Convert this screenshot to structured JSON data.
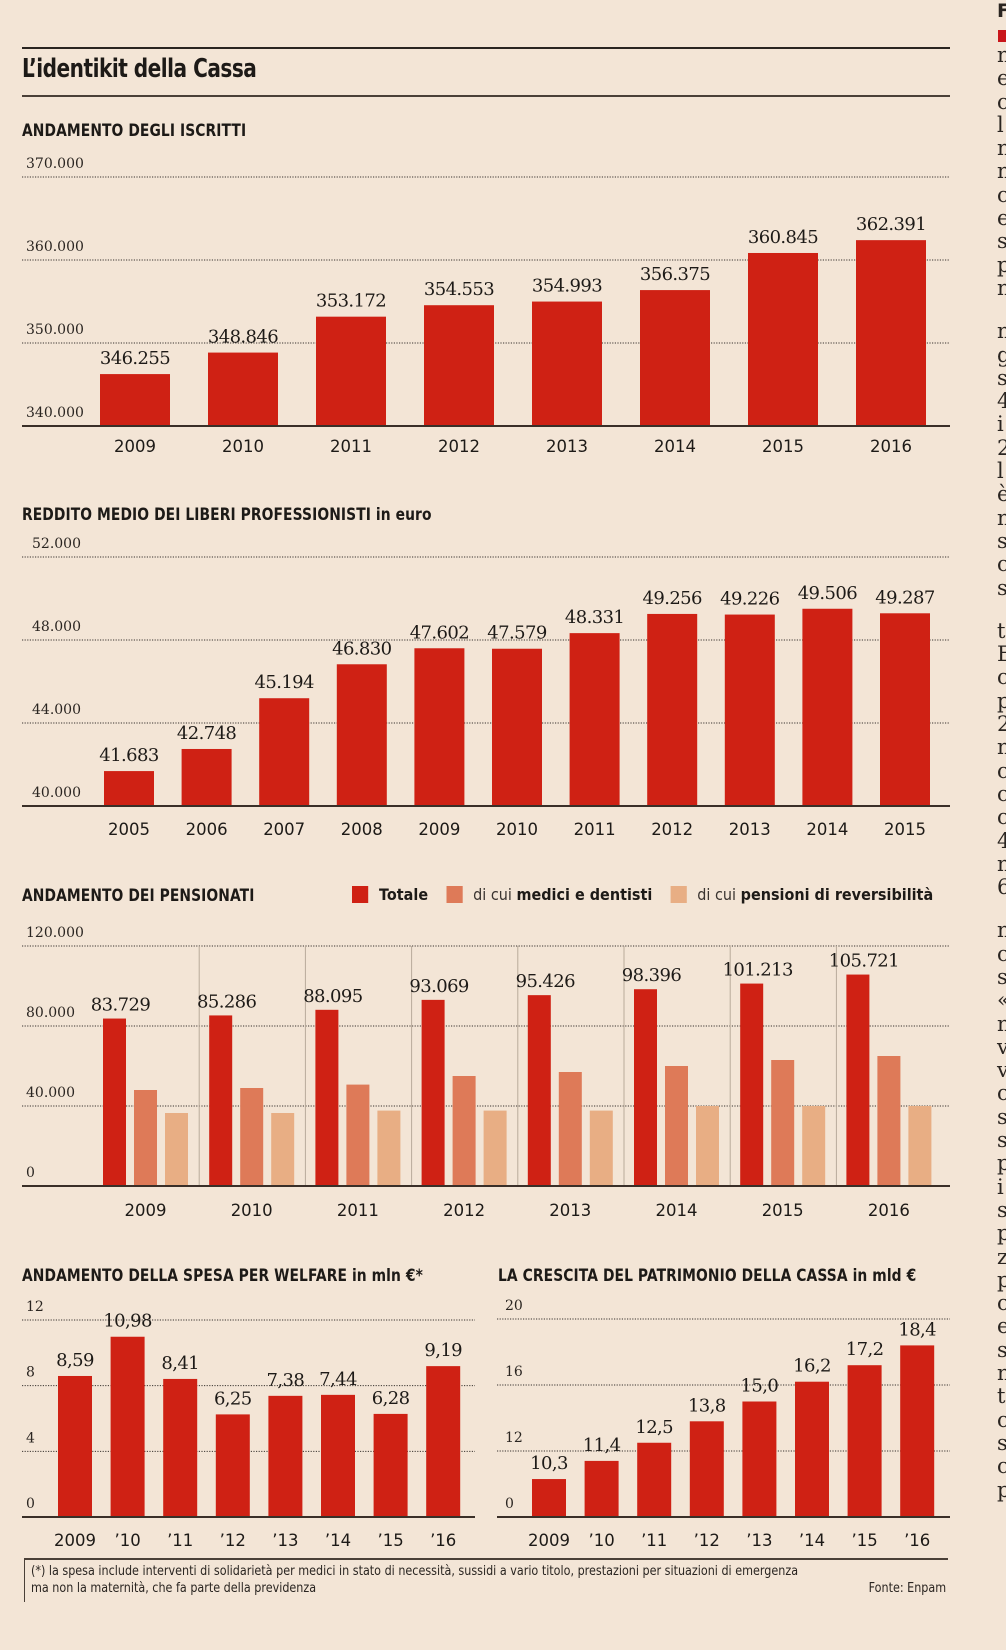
{
  "page": {
    "title": "L’identikit della Cassa",
    "background": "#f3e5d6",
    "colors": {
      "primary": "#cf2114",
      "medici": "#de7a58",
      "reversibilita": "#e8ae84",
      "text": "#1d1a17"
    }
  },
  "charts_titles": {
    "iscritti": "ANDAMENTO DEGLI ISCRITTI",
    "reddito_main": "REDDITO MEDIO DEI LIBERI PROFESSIONISTI",
    "reddito_unit": "in euro",
    "pensionati": "ANDAMENTO DEI PENSIONATI",
    "welfare_main": "ANDAMENTO DELLA SPESA PER WELFARE",
    "welfare_unit": "in mln €*",
    "patrimonio_main": "LA CRESCITA DEL PATRIMONIO DELLA CASSA",
    "patrimonio_unit": "in mld €"
  },
  "legend": {
    "totale": "Totale",
    "medici_prefix": "di cui",
    "medici_bold": "medici e dentisti",
    "rev_prefix": "di cui",
    "rev_bold": "pensioni di reversibilità"
  },
  "chart_data": [
    {
      "id": "iscritti",
      "type": "bar",
      "title": "ANDAMENTO DEGLI ISCRITTI",
      "categories": [
        "2009",
        "2010",
        "2011",
        "2012",
        "2013",
        "2014",
        "2015",
        "2016"
      ],
      "values": [
        346255,
        348846,
        353172,
        354553,
        354993,
        356375,
        360845,
        362391
      ],
      "value_labels": [
        "346.255",
        "348.846",
        "353.172",
        "354.553",
        "354.993",
        "356.375",
        "360.845",
        "362.391"
      ],
      "yticks": [
        340000,
        350000,
        360000,
        370000
      ],
      "ytick_labels": [
        "340.000",
        "350.000",
        "360.000",
        "370.000"
      ],
      "ylim": [
        340000,
        370000
      ],
      "grid": true
    },
    {
      "id": "reddito",
      "type": "bar",
      "title": "REDDITO MEDIO DEI LIBERI PROFESSIONISTI in euro",
      "categories": [
        "2005",
        "2006",
        "2007",
        "2008",
        "2009",
        "2010",
        "2011",
        "2012",
        "2013",
        "2014",
        "2015"
      ],
      "values": [
        41683,
        42748,
        45194,
        46830,
        47602,
        47579,
        48331,
        49256,
        49226,
        49506,
        49287
      ],
      "value_labels": [
        "41.683",
        "42.748",
        "45.194",
        "46.830",
        "47.602",
        "47.579",
        "48.331",
        "49.256",
        "49.226",
        "49.506",
        "49.287"
      ],
      "yticks": [
        40000,
        44000,
        48000,
        52000
      ],
      "ytick_labels": [
        "40.000",
        "44.000",
        "48.000",
        "52.000"
      ],
      "ylim": [
        40000,
        52000
      ],
      "grid": true
    },
    {
      "id": "pensionati",
      "type": "bar",
      "title": "ANDAMENTO DEI PENSIONATI",
      "categories": [
        "2009",
        "2010",
        "2011",
        "2012",
        "2013",
        "2014",
        "2015",
        "2016"
      ],
      "series": [
        {
          "name": "Totale",
          "values": [
            83729,
            85286,
            88095,
            93069,
            95426,
            98396,
            101213,
            105721
          ],
          "value_labels": [
            "83.729",
            "85.286",
            "88.095",
            "93.069",
            "95.426",
            "98.396",
            "101.213",
            "105.721"
          ]
        },
        {
          "name": "di cui medici e dentisti",
          "values": [
            48000,
            49000,
            50700,
            55000,
            57000,
            60000,
            63000,
            65000
          ]
        },
        {
          "name": "di cui pensioni di reversibilità",
          "values": [
            36500,
            36500,
            37700,
            37700,
            37700,
            40000,
            40000,
            40000
          ]
        }
      ],
      "yticks": [
        0,
        40000,
        80000,
        120000
      ],
      "ytick_labels": [
        "0",
        "40.000",
        "80.000",
        "120.000"
      ],
      "ylim": [
        0,
        120000
      ],
      "legend": "top-right",
      "grid": true
    },
    {
      "id": "welfare",
      "type": "bar",
      "title": "ANDAMENTO DELLA SPESA PER WELFARE in mln €*",
      "categories": [
        "2009",
        "’10",
        "’11",
        "’12",
        "’13",
        "’14",
        "’15",
        "’16"
      ],
      "values": [
        8.59,
        10.98,
        8.41,
        6.25,
        7.38,
        7.44,
        6.28,
        9.19
      ],
      "value_labels": [
        "8,59",
        "10,98",
        "8,41",
        "6,25",
        "7,38",
        "7,44",
        "6,28",
        "9,19"
      ],
      "yticks": [
        0,
        4,
        8,
        12
      ],
      "ytick_labels": [
        "0",
        "4",
        "8",
        "12"
      ],
      "ylim": [
        0,
        12
      ],
      "grid": true
    },
    {
      "id": "patrimonio",
      "type": "bar",
      "title": "LA CRESCITA DEL PATRIMONIO DELLA CASSA in mld €",
      "categories": [
        "2009",
        "’10",
        "’11",
        "’12",
        "’13",
        "’14",
        "’15",
        "’16"
      ],
      "values": [
        10.3,
        11.4,
        12.5,
        13.8,
        15.0,
        16.2,
        17.2,
        18.4
      ],
      "value_labels": [
        "10,3",
        "11,4",
        "12,5",
        "13,8",
        "15,0",
        "16,2",
        "17,2",
        "18,4"
      ],
      "yticks": [
        0,
        12,
        16,
        20
      ],
      "ytick_labels": [
        "0",
        "12",
        "16",
        "20"
      ],
      "ylim": [
        0,
        20
      ],
      "axis_break": "0 to 8 compressed (baseline labeled 0)",
      "grid": true
    }
  ],
  "footnote": {
    "text_line1": "(*) la spesa include interventi di solidarietà per medici in stato di necessità, sussidi a vario titolo, prestazioni per situazioni di emergenza",
    "text_line2": "ma non la maternità, che fa parte della previdenza",
    "source": "Fonte: Enpam"
  },
  "side_column": {
    "heading": "F",
    "letters_a": [
      "n",
      "e",
      "c",
      "l",
      "n",
      "n",
      "c",
      "e",
      "s",
      "p",
      "n"
    ],
    "letters_b": [
      "n",
      "g",
      "s",
      "4",
      "i",
      "2",
      "l",
      "è",
      "n",
      "s",
      "c",
      "s"
    ],
    "letters_c": [
      "t",
      "E",
      "c",
      "p",
      "2",
      "n",
      "c",
      "c",
      "c",
      "4",
      "n",
      "6"
    ],
    "letters_d": [
      "n",
      "c",
      "s",
      "«",
      "n",
      "v",
      "v",
      "c",
      "s",
      "s",
      "p",
      "i",
      "s",
      "p",
      "z",
      "p",
      "c",
      "e",
      "s",
      "n",
      "t",
      "c",
      "s",
      "c",
      "p"
    ]
  }
}
